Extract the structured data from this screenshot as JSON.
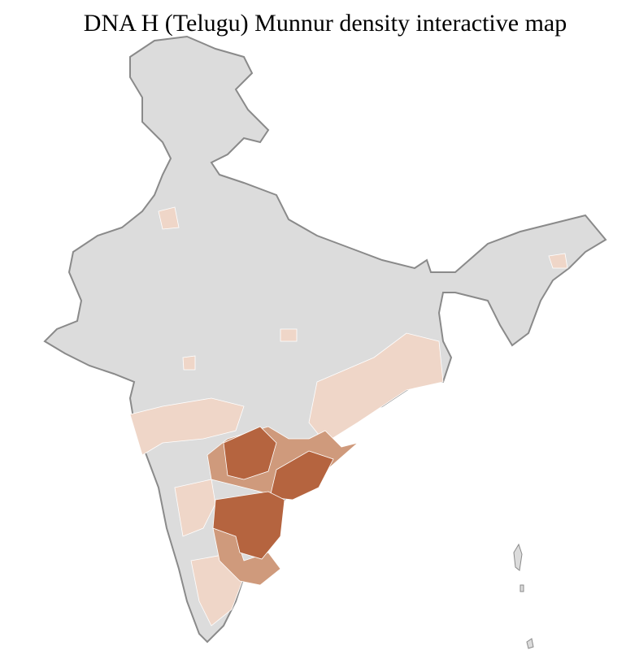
{
  "title": "DNA H (Telugu) Munnur density interactive map",
  "map": {
    "colors": {
      "no_data": "#dcdcdc",
      "low": "#efd6c8",
      "medium": "#cf9a7c",
      "high": "#b5643f",
      "state_border": "#8a8a8a",
      "district_border": "#ffffff"
    }
  }
}
